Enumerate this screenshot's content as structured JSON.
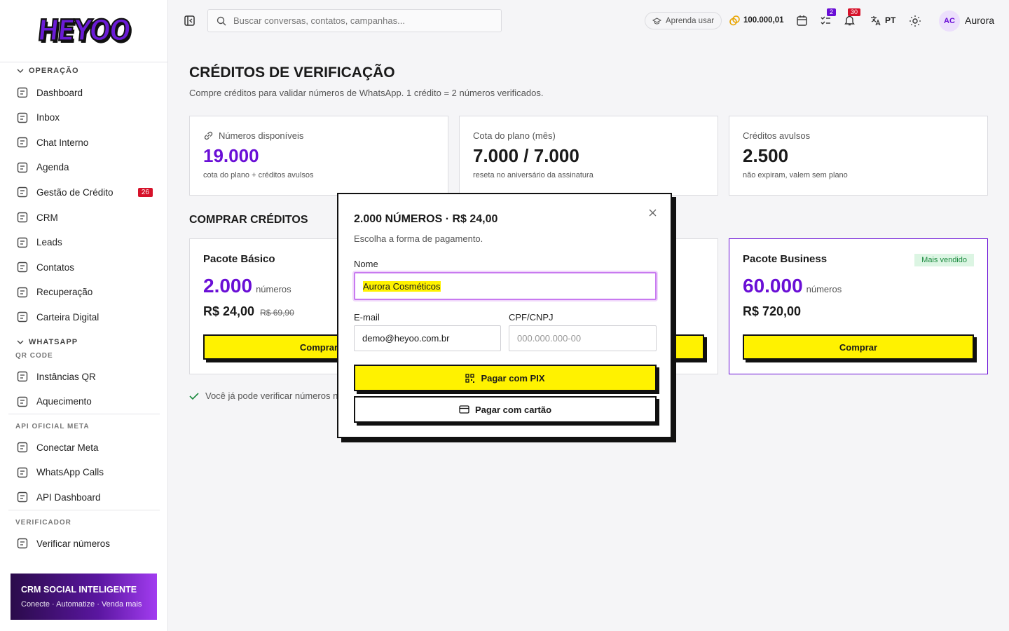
{
  "logo": "HEYOO",
  "topbar": {
    "search_placeholder": "Buscar conversas, contatos, campanhas...",
    "learn": "Aprenda usar",
    "balance": "100.000,01",
    "tasks_badge": "2",
    "notifications_badge": "30",
    "language": "PT",
    "avatar": "AC",
    "user": "Aurora"
  },
  "sidebar": {
    "operacao": {
      "title": "OPERAÇÃO",
      "items": [
        {
          "label": "Dashboard"
        },
        {
          "label": "Inbox"
        },
        {
          "label": "Chat Interno"
        },
        {
          "label": "Agenda"
        },
        {
          "label": "Gestão de Crédito",
          "badge": "26"
        },
        {
          "label": "CRM"
        },
        {
          "label": "Leads"
        },
        {
          "label": "Contatos"
        },
        {
          "label": "Recuperação"
        },
        {
          "label": "Carteira Digital"
        }
      ]
    },
    "whatsapp": {
      "title": "WHATSAPP",
      "groups": [
        {
          "title": "QR CODE",
          "items": [
            {
              "label": "Instâncias QR"
            },
            {
              "label": "Aquecimento"
            }
          ]
        },
        {
          "title": "API OFICIAL META",
          "items": [
            {
              "label": "Conectar Meta"
            },
            {
              "label": "WhatsApp Calls"
            },
            {
              "label": "API Dashboard"
            }
          ]
        },
        {
          "title": "VERIFICADOR",
          "items": [
            {
              "label": "Verificar números"
            }
          ]
        }
      ]
    },
    "promo": {
      "title": "CRM SOCIAL INTELIGENTE",
      "subtitle": "Conecte · Automatize · Venda mais"
    }
  },
  "page": {
    "title": "CRÉDITOS DE VERIFICAÇÃO",
    "subtitle": "Compre créditos para validar números de WhatsApp. 1 crédito = 2 números verificados.",
    "stats": [
      {
        "label": "Números disponíveis",
        "value": "19.000",
        "note": "cota do plano + créditos avulsos"
      },
      {
        "label": "Cota do plano (mês)",
        "value": "7.000 / 7.000",
        "note": "reseta no aniversário da assinatura"
      },
      {
        "label": "Créditos avulsos",
        "value": "2.500",
        "note": "não expiram, valem sem plano"
      }
    ],
    "buy_title": "COMPRAR CRÉDITOS",
    "packages": [
      {
        "name": "Pacote Básico",
        "amount": "2.000",
        "unit": "números",
        "price": "R$ 24,00",
        "old_price": "R$ 69,90",
        "button": "Comprar"
      },
      {
        "name": "Pacote Business",
        "badge": "Mais vendido",
        "amount": "60.000",
        "unit": "números",
        "price": "R$ 720,00",
        "button": "Comprar"
      }
    ],
    "notice": "Você já pode verificar números na"
  },
  "modal": {
    "title": "2.000 NÚMEROS · R$ 24,00",
    "subtitle": "Escolha a forma de pagamento.",
    "name_label": "Nome",
    "name_value": "Aurora Cosméticos",
    "email_label": "E-mail",
    "email_value": "demo@heyoo.com.br",
    "doc_label": "CPF/CNPJ",
    "doc_placeholder": "000.000.000-00",
    "pix_button": "Pagar com PIX",
    "card_button": "Pagar com cartão"
  }
}
